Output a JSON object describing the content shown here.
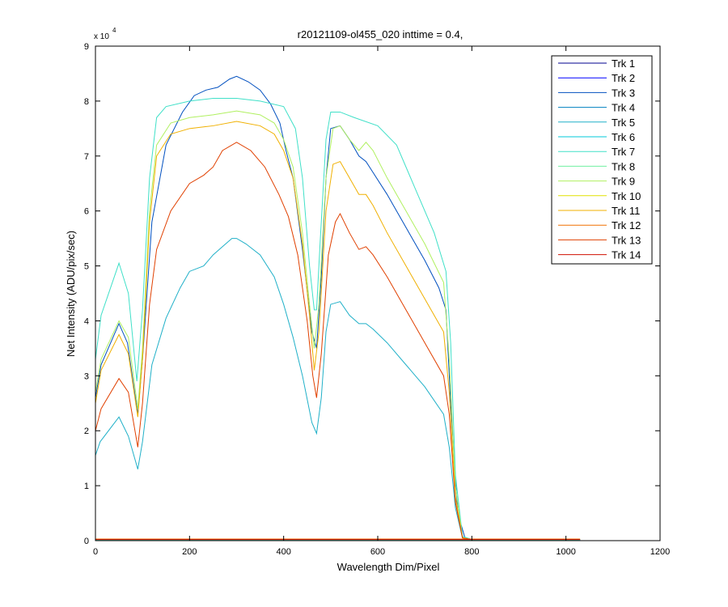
{
  "chart_data": {
    "type": "line",
    "title": "r20121109-ol455_020 inttime = 0.4,",
    "xlabel": "Wavelength Dim/Pixel",
    "ylabel": "Net Intensity (ADU/pix/sec)",
    "y_multiplier_label": "x 10",
    "y_multiplier_exponent": "4",
    "xlim": [
      0,
      1200
    ],
    "ylim": [
      0,
      9
    ],
    "grid": false,
    "legend_position": "top-right",
    "x_ticks": [
      0,
      200,
      400,
      600,
      800,
      1000,
      1200
    ],
    "y_ticks": [
      0,
      1,
      2,
      3,
      4,
      5,
      6,
      7,
      8,
      9
    ],
    "x_tick_labels": [
      "0",
      "200",
      "400",
      "600",
      "800",
      "1000",
      "1200"
    ],
    "y_tick_labels": [
      "0",
      "1",
      "2",
      "3",
      "4",
      "5",
      "6",
      "7",
      "8",
      "9"
    ],
    "series": [
      {
        "name": "Trk 1",
        "color": "#00008f",
        "x": [
          0,
          1030
        ],
        "y": [
          0.01,
          0.01
        ]
      },
      {
        "name": "Trk 2",
        "color": "#0000ff",
        "x": [
          0,
          1030
        ],
        "y": [
          0.015,
          0.015
        ]
      },
      {
        "name": "Trk 3",
        "color": "#004fbf",
        "x": [
          0,
          12,
          50,
          68,
          90,
          100,
          120,
          150,
          185,
          210,
          235,
          260,
          285,
          300,
          325,
          350,
          372,
          392,
          405,
          420,
          440,
          460,
          470,
          480,
          490,
          500,
          520,
          540,
          560,
          575,
          590,
          620,
          660,
          700,
          730,
          745,
          755,
          770,
          785,
          800
        ],
        "y": [
          2.6,
          3.2,
          3.95,
          3.6,
          2.3,
          3.3,
          5.8,
          7.2,
          7.8,
          8.1,
          8.2,
          8.25,
          8.4,
          8.45,
          8.35,
          8.2,
          7.95,
          7.6,
          7.1,
          6.6,
          5.3,
          3.8,
          3.5,
          4.8,
          6.6,
          7.5,
          7.55,
          7.3,
          7.0,
          6.9,
          6.7,
          6.3,
          5.7,
          5.1,
          4.6,
          4.2,
          2.5,
          0.5,
          0.06,
          0.02
        ]
      },
      {
        "name": "Trk 4",
        "color": "#0080c0",
        "x": [
          0,
          1030
        ],
        "y": [
          0.02,
          0.02
        ]
      },
      {
        "name": "Trk 5",
        "color": "#20b0c8",
        "x": [
          0,
          10,
          50,
          70,
          90,
          100,
          120,
          150,
          180,
          200,
          230,
          250,
          270,
          290,
          300,
          320,
          350,
          380,
          400,
          420,
          440,
          460,
          470,
          480,
          490,
          500,
          520,
          540,
          560,
          575,
          590,
          620,
          660,
          700,
          740,
          752,
          765,
          780,
          800
        ],
        "y": [
          1.55,
          1.8,
          2.25,
          1.9,
          1.3,
          1.8,
          3.2,
          4.05,
          4.6,
          4.9,
          5.0,
          5.2,
          5.35,
          5.5,
          5.5,
          5.4,
          5.2,
          4.8,
          4.3,
          3.7,
          3.0,
          2.15,
          1.95,
          2.6,
          3.8,
          4.3,
          4.35,
          4.1,
          3.95,
          3.95,
          3.85,
          3.6,
          3.2,
          2.8,
          2.3,
          1.7,
          0.6,
          0.05,
          0.02
        ]
      },
      {
        "name": "Trk 6",
        "color": "#00c8d8",
        "x": [
          0,
          1030
        ],
        "y": [
          0.012,
          0.012
        ]
      },
      {
        "name": "Trk 7",
        "color": "#40e0c8",
        "x": [
          0,
          12,
          50,
          70,
          88,
          100,
          115,
          130,
          150,
          200,
          250,
          300,
          350,
          400,
          425,
          440,
          455,
          465,
          470,
          478,
          490,
          500,
          520,
          550,
          600,
          640,
          680,
          720,
          745,
          755,
          765,
          780,
          800
        ],
        "y": [
          3.3,
          4.1,
          5.05,
          4.5,
          2.9,
          4.2,
          6.6,
          7.7,
          7.9,
          8.0,
          8.05,
          8.05,
          8.0,
          7.9,
          7.5,
          6.6,
          5.0,
          4.2,
          4.2,
          5.5,
          7.3,
          7.8,
          7.8,
          7.7,
          7.55,
          7.2,
          6.4,
          5.6,
          4.9,
          3.6,
          1.2,
          0.08,
          0.02
        ]
      },
      {
        "name": "Trk 8",
        "color": "#70f0a0",
        "x": [
          0,
          1030
        ],
        "y": [
          0.018,
          0.018
        ]
      },
      {
        "name": "Trk 9",
        "color": "#b0f060",
        "x": [
          0,
          12,
          50,
          70,
          90,
          100,
          115,
          130,
          160,
          200,
          250,
          300,
          350,
          380,
          400,
          420,
          440,
          455,
          465,
          475,
          490,
          505,
          520,
          540,
          560,
          575,
          590,
          620,
          660,
          700,
          740,
          752,
          765,
          780,
          800
        ],
        "y": [
          2.7,
          3.3,
          4.0,
          3.7,
          2.4,
          3.5,
          6.0,
          7.2,
          7.6,
          7.7,
          7.75,
          7.82,
          7.75,
          7.6,
          7.3,
          6.8,
          5.6,
          4.3,
          3.5,
          4.3,
          6.6,
          7.5,
          7.55,
          7.3,
          7.1,
          7.25,
          7.1,
          6.6,
          6.0,
          5.4,
          4.7,
          3.3,
          1.0,
          0.06,
          0.02
        ]
      },
      {
        "name": "Trk 10",
        "color": "#e0e000",
        "x": [
          0,
          1030
        ],
        "y": [
          0.025,
          0.025
        ]
      },
      {
        "name": "Trk 11",
        "color": "#f0b000",
        "x": [
          0,
          12,
          50,
          70,
          90,
          100,
          115,
          130,
          160,
          200,
          250,
          300,
          350,
          380,
          400,
          420,
          440,
          455,
          465,
          475,
          490,
          505,
          520,
          540,
          560,
          575,
          590,
          620,
          660,
          700,
          740,
          752,
          765,
          780,
          800
        ],
        "y": [
          2.5,
          3.1,
          3.75,
          3.4,
          2.25,
          3.3,
          5.8,
          7.0,
          7.4,
          7.5,
          7.55,
          7.63,
          7.55,
          7.4,
          7.1,
          6.6,
          5.4,
          4.1,
          3.1,
          3.8,
          6.0,
          6.85,
          6.9,
          6.6,
          6.3,
          6.3,
          6.1,
          5.6,
          5.0,
          4.4,
          3.8,
          2.7,
          0.8,
          0.05,
          0.02
        ]
      },
      {
        "name": "Trk 12",
        "color": "#f07000",
        "x": [
          0,
          1030
        ],
        "y": [
          0.03,
          0.03
        ]
      },
      {
        "name": "Trk 13",
        "color": "#e04000",
        "x": [
          0,
          12,
          50,
          70,
          90,
          100,
          115,
          130,
          160,
          200,
          230,
          250,
          270,
          300,
          330,
          360,
          390,
          410,
          430,
          450,
          462,
          470,
          480,
          495,
          510,
          520,
          540,
          560,
          575,
          590,
          620,
          660,
          700,
          740,
          752,
          765,
          780,
          800
        ],
        "y": [
          2.0,
          2.4,
          2.95,
          2.7,
          1.7,
          2.5,
          4.3,
          5.3,
          6.0,
          6.5,
          6.65,
          6.8,
          7.1,
          7.25,
          7.1,
          6.8,
          6.3,
          5.9,
          5.2,
          4.0,
          3.0,
          2.6,
          3.4,
          5.2,
          5.8,
          5.95,
          5.6,
          5.3,
          5.35,
          5.2,
          4.8,
          4.2,
          3.6,
          3.0,
          2.3,
          0.7,
          0.05,
          0.02
        ]
      },
      {
        "name": "Trk 14",
        "color": "#d01000",
        "x": [
          0,
          1030
        ],
        "y": [
          0.02,
          0.02
        ]
      }
    ]
  }
}
